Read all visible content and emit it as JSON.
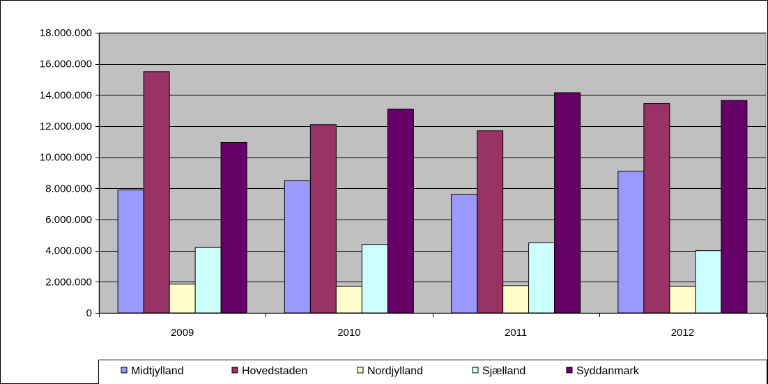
{
  "chart_data": {
    "type": "bar",
    "categories": [
      "2009",
      "2010",
      "2011",
      "2012"
    ],
    "series": [
      {
        "name": "Midtjylland",
        "values": [
          7900000,
          8500000,
          7600000,
          9100000
        ],
        "color": "#9999ff"
      },
      {
        "name": "Hovedstaden",
        "values": [
          15500000,
          12100000,
          11700000,
          13450000
        ],
        "color": "#993366"
      },
      {
        "name": "Nordjylland",
        "values": [
          1850000,
          1700000,
          1750000,
          1700000
        ],
        "color": "#ffffcc"
      },
      {
        "name": "Sjælland",
        "values": [
          4200000,
          4400000,
          4500000,
          4000000
        ],
        "color": "#ccffff"
      },
      {
        "name": "Syddanmark",
        "values": [
          10950000,
          13100000,
          14150000,
          13650000
        ],
        "color": "#660066"
      }
    ],
    "ylim": [
      0,
      18000000
    ],
    "yticks": [
      0,
      2000000,
      4000000,
      6000000,
      8000000,
      10000000,
      12000000,
      14000000,
      16000000,
      18000000
    ],
    "ytick_labels": [
      "0",
      "2.000.000",
      "4.000.000",
      "6.000.000",
      "8.000.000",
      "10.000.000",
      "12.000.000",
      "14.000.000",
      "16.000.000",
      "18.000.000"
    ],
    "grid": true,
    "plot_background": "#c0c0c0",
    "legend_position": "bottom"
  }
}
